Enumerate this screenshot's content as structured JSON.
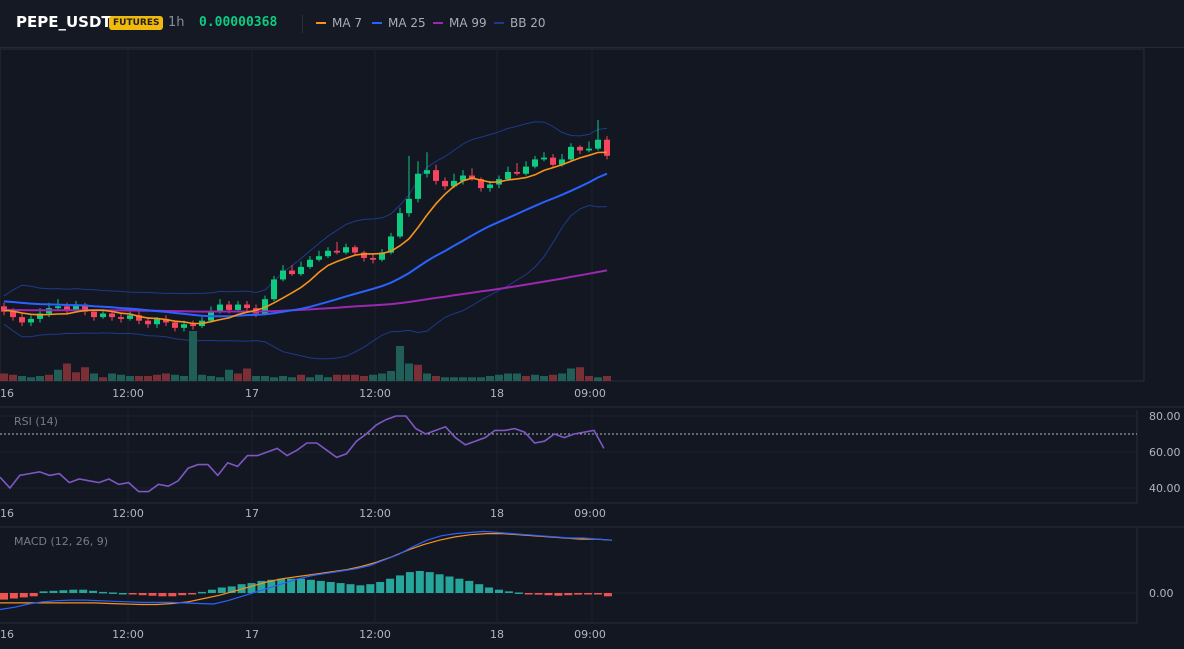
{
  "header": {
    "symbol": "PEPE_USDT",
    "badge": "FUTURES",
    "interval": "1h",
    "price": "0.00000368",
    "legend": [
      {
        "label": "MA 7",
        "color": "#f7931a"
      },
      {
        "label": "MA 25",
        "color": "#2962ff"
      },
      {
        "label": "MA 99",
        "color": "#9c27b0"
      },
      {
        "label": "BB 20",
        "color": "#1e3a8a"
      }
    ]
  },
  "colors": {
    "up": "#26a69a",
    "down": "#ef5350",
    "candle_up": "#0ecb81",
    "candle_down": "#f6465d",
    "rsi": "#7e57c2",
    "macd": "#2962ff",
    "signal": "#f7931a"
  },
  "time_axis": [
    "16",
    "12:00",
    "17",
    "12:00",
    "18",
    "09:00"
  ],
  "rsi": {
    "label": "RSI (14)",
    "ticks": [
      "80.00",
      "60.00",
      "40.00"
    ],
    "reference_level": 70
  },
  "macd": {
    "label": "MACD (12, 26, 9)",
    "ticks": [
      "0.00"
    ]
  },
  "chart_data": [
    {
      "type": "candlestick",
      "panel": "price",
      "note": "Hourly candles, relative price scale (no price axis labels shown)",
      "candles": [
        [
          48.0,
          46.5,
          49.0,
          45.5
        ],
        [
          46.5,
          45.0,
          47.5,
          44.0
        ],
        [
          45.0,
          43.5,
          46.0,
          42.5
        ],
        [
          43.5,
          44.5,
          45.5,
          42.5
        ],
        [
          44.5,
          46.0,
          47.5,
          43.5
        ],
        [
          46.0,
          47.5,
          49.0,
          45.0
        ],
        [
          47.5,
          48.0,
          50.0,
          47.0
        ],
        [
          48.0,
          47.0,
          49.0,
          46.0
        ],
        [
          47.0,
          48.5,
          49.5,
          46.5
        ],
        [
          48.5,
          46.5,
          49.0,
          45.5
        ],
        [
          46.5,
          45.0,
          47.0,
          44.0
        ],
        [
          45.0,
          46.0,
          47.0,
          44.5
        ],
        [
          46.0,
          45.0,
          46.5,
          44.0
        ],
        [
          45.0,
          44.5,
          46.0,
          43.5
        ],
        [
          44.5,
          45.5,
          46.5,
          44.0
        ],
        [
          45.5,
          44.0,
          47.0,
          43.0
        ],
        [
          44.0,
          43.0,
          45.0,
          42.0
        ],
        [
          43.0,
          44.5,
          45.0,
          42.0
        ],
        [
          44.5,
          43.5,
          45.5,
          42.5
        ],
        [
          43.5,
          42.0,
          44.0,
          41.0
        ],
        [
          42.0,
          43.0,
          44.0,
          41.0
        ],
        [
          43.0,
          42.5,
          44.0,
          41.5
        ],
        [
          42.5,
          44.0,
          45.0,
          42.0
        ],
        [
          44.0,
          46.5,
          48.0,
          43.5
        ],
        [
          46.5,
          48.5,
          50.0,
          46.0
        ],
        [
          48.5,
          47.0,
          49.5,
          46.0
        ],
        [
          47.0,
          48.5,
          49.5,
          46.5
        ],
        [
          48.5,
          47.5,
          49.5,
          46.5
        ],
        [
          47.5,
          46.0,
          48.5,
          45.0
        ],
        [
          46.0,
          50.0,
          51.0,
          45.5
        ],
        [
          50.0,
          55.5,
          56.5,
          49.5
        ],
        [
          55.5,
          58.0,
          59.5,
          55.0
        ],
        [
          58.0,
          57.0,
          59.5,
          56.5
        ],
        [
          57.0,
          59.0,
          60.5,
          56.5
        ],
        [
          59.0,
          61.0,
          62.0,
          58.5
        ],
        [
          61.0,
          62.0,
          63.5,
          60.5
        ],
        [
          62.0,
          63.5,
          64.5,
          61.5
        ],
        [
          63.5,
          63.0,
          66.0,
          62.5
        ],
        [
          63.0,
          64.5,
          65.5,
          62.5
        ],
        [
          64.5,
          63.0,
          65.0,
          62.0
        ],
        [
          63.0,
          61.5,
          63.5,
          60.5
        ],
        [
          61.5,
          61.0,
          62.5,
          60.0
        ],
        [
          61.0,
          63.0,
          64.0,
          60.5
        ],
        [
          63.0,
          67.5,
          68.5,
          62.5
        ],
        [
          67.5,
          74.0,
          75.5,
          67.0
        ],
        [
          74.0,
          78.0,
          90.0,
          73.0
        ],
        [
          78.0,
          85.0,
          88.5,
          77.0
        ],
        [
          85.0,
          86.0,
          91.0,
          84.0
        ],
        [
          86.0,
          83.0,
          87.5,
          82.0
        ],
        [
          83.0,
          81.5,
          84.0,
          80.5
        ],
        [
          81.5,
          83.0,
          85.0,
          81.0
        ],
        [
          83.0,
          84.5,
          86.0,
          82.0
        ],
        [
          84.5,
          83.5,
          86.5,
          83.0
        ],
        [
          83.5,
          81.0,
          84.0,
          80.0
        ],
        [
          81.0,
          82.0,
          83.0,
          80.0
        ],
        [
          82.0,
          83.5,
          84.5,
          81.0
        ],
        [
          83.5,
          85.5,
          87.0,
          83.0
        ],
        [
          85.5,
          85.0,
          88.0,
          84.5
        ],
        [
          85.0,
          87.0,
          88.5,
          84.5
        ],
        [
          87.0,
          89.0,
          90.0,
          86.5
        ],
        [
          89.0,
          89.5,
          91.0,
          88.5
        ],
        [
          89.5,
          87.5,
          90.5,
          87.0
        ],
        [
          87.5,
          89.0,
          90.5,
          87.0
        ],
        [
          89.0,
          92.5,
          93.5,
          88.5
        ],
        [
          92.5,
          91.5,
          93.0,
          90.5
        ],
        [
          91.5,
          92.0,
          94.0,
          91.0
        ],
        [
          92.0,
          94.5,
          100.0,
          91.5
        ],
        [
          94.5,
          90.0,
          95.5,
          89.0
        ]
      ],
      "volume": [
        [
          6,
          -1
        ],
        [
          5,
          -1
        ],
        [
          4,
          1
        ],
        [
          3,
          1
        ],
        [
          4,
          1
        ],
        [
          5,
          -1
        ],
        [
          9,
          1
        ],
        [
          14,
          -1
        ],
        [
          7,
          -1
        ],
        [
          11,
          -1
        ],
        [
          6,
          1
        ],
        [
          3,
          -1
        ],
        [
          6,
          1
        ],
        [
          5,
          1
        ],
        [
          4,
          1
        ],
        [
          4,
          -1
        ],
        [
          4,
          -1
        ],
        [
          5,
          -1
        ],
        [
          6,
          -1
        ],
        [
          5,
          1
        ],
        [
          4,
          1
        ],
        [
          40,
          1
        ],
        [
          5,
          1
        ],
        [
          4,
          1
        ],
        [
          3,
          1
        ],
        [
          9,
          1
        ],
        [
          6,
          -1
        ],
        [
          10,
          -1
        ],
        [
          4,
          1
        ],
        [
          4,
          1
        ],
        [
          3,
          1
        ],
        [
          4,
          1
        ],
        [
          3,
          1
        ],
        [
          5,
          -1
        ],
        [
          3,
          1
        ],
        [
          5,
          1
        ],
        [
          3,
          1
        ],
        [
          5,
          -1
        ],
        [
          5,
          -1
        ],
        [
          5,
          -1
        ],
        [
          4,
          -1
        ],
        [
          5,
          1
        ],
        [
          6,
          1
        ],
        [
          8,
          1
        ],
        [
          28,
          1
        ],
        [
          14,
          1
        ],
        [
          13,
          -1
        ],
        [
          6,
          1
        ],
        [
          4,
          -1
        ],
        [
          3,
          1
        ],
        [
          3,
          1
        ],
        [
          3,
          1
        ],
        [
          3,
          1
        ],
        [
          3,
          1
        ],
        [
          4,
          1
        ],
        [
          5,
          1
        ],
        [
          6,
          1
        ],
        [
          6,
          1
        ],
        [
          4,
          -1
        ],
        [
          5,
          1
        ],
        [
          4,
          1
        ],
        [
          5,
          -1
        ],
        [
          6,
          1
        ],
        [
          10,
          1
        ],
        [
          11,
          -1
        ],
        [
          4,
          -1
        ],
        [
          3,
          1
        ],
        [
          4,
          -1
        ]
      ]
    },
    {
      "type": "line",
      "panel": "rsi",
      "name": "RSI (14)",
      "ylim": [
        34,
        84
      ],
      "values": [
        46,
        40,
        47,
        48,
        49,
        47,
        48,
        43,
        45,
        44,
        43,
        45,
        42,
        43,
        38,
        38,
        42,
        41,
        44,
        51,
        53,
        53,
        47,
        54,
        52,
        58,
        58,
        60,
        62,
        58,
        61,
        65,
        65,
        61,
        57,
        59,
        66,
        70,
        75,
        78,
        80,
        80,
        73,
        70,
        72,
        74,
        68,
        64,
        66,
        68,
        72,
        72,
        73,
        71,
        65,
        66,
        70,
        68,
        70,
        71,
        72,
        62
      ]
    },
    {
      "type": "bar+line",
      "panel": "macd",
      "name": "MACD (12, 26, 9)",
      "histogram": [
        -0.6,
        -0.5,
        -0.4,
        -0.3,
        0.15,
        0.2,
        0.25,
        0.3,
        0.3,
        0.2,
        0.1,
        0.05,
        0.0,
        -0.1,
        -0.2,
        -0.25,
        -0.3,
        -0.3,
        -0.2,
        -0.1,
        0.1,
        0.3,
        0.5,
        0.6,
        0.8,
        0.9,
        1.1,
        1.2,
        1.3,
        1.3,
        1.3,
        1.2,
        1.1,
        1.0,
        0.9,
        0.8,
        0.7,
        0.8,
        1.0,
        1.3,
        1.6,
        1.9,
        2.0,
        1.9,
        1.7,
        1.5,
        1.3,
        1.1,
        0.8,
        0.5,
        0.3,
        0.15,
        0.05,
        -0.1,
        -0.15,
        -0.2,
        -0.25,
        -0.2,
        -0.15,
        -0.1,
        -0.05,
        -0.3
      ],
      "macd_line": [
        -1.5,
        -1.3,
        -1.0,
        -0.8,
        -0.7,
        -0.65,
        -0.65,
        -0.7,
        -0.75,
        -0.8,
        -0.85,
        -0.85,
        -0.85,
        -0.9,
        -0.95,
        -1.0,
        -0.7,
        -0.3,
        0.1,
        0.5,
        0.9,
        1.3,
        1.6,
        1.8,
        2.0,
        2.2,
        2.5,
        3.0,
        3.5,
        4.2,
        4.8,
        5.2,
        5.4,
        5.5,
        5.6,
        5.5,
        5.4,
        5.3,
        5.2,
        5.1,
        5.0,
        5.0,
        4.9,
        4.8
      ],
      "signal_line": [
        -0.9,
        -0.9,
        -0.9,
        -0.9,
        -0.9,
        -0.9,
        -0.9,
        -0.95,
        -1.0,
        -1.05,
        -1.05,
        -0.95,
        -0.8,
        -0.5,
        -0.2,
        0.2,
        0.6,
        1.0,
        1.3,
        1.5,
        1.7,
        1.9,
        2.1,
        2.4,
        2.8,
        3.3,
        3.9,
        4.4,
        4.8,
        5.1,
        5.3,
        5.4,
        5.4,
        5.3,
        5.2,
        5.1,
        5.0,
        4.9,
        4.9,
        4.8
      ]
    }
  ]
}
